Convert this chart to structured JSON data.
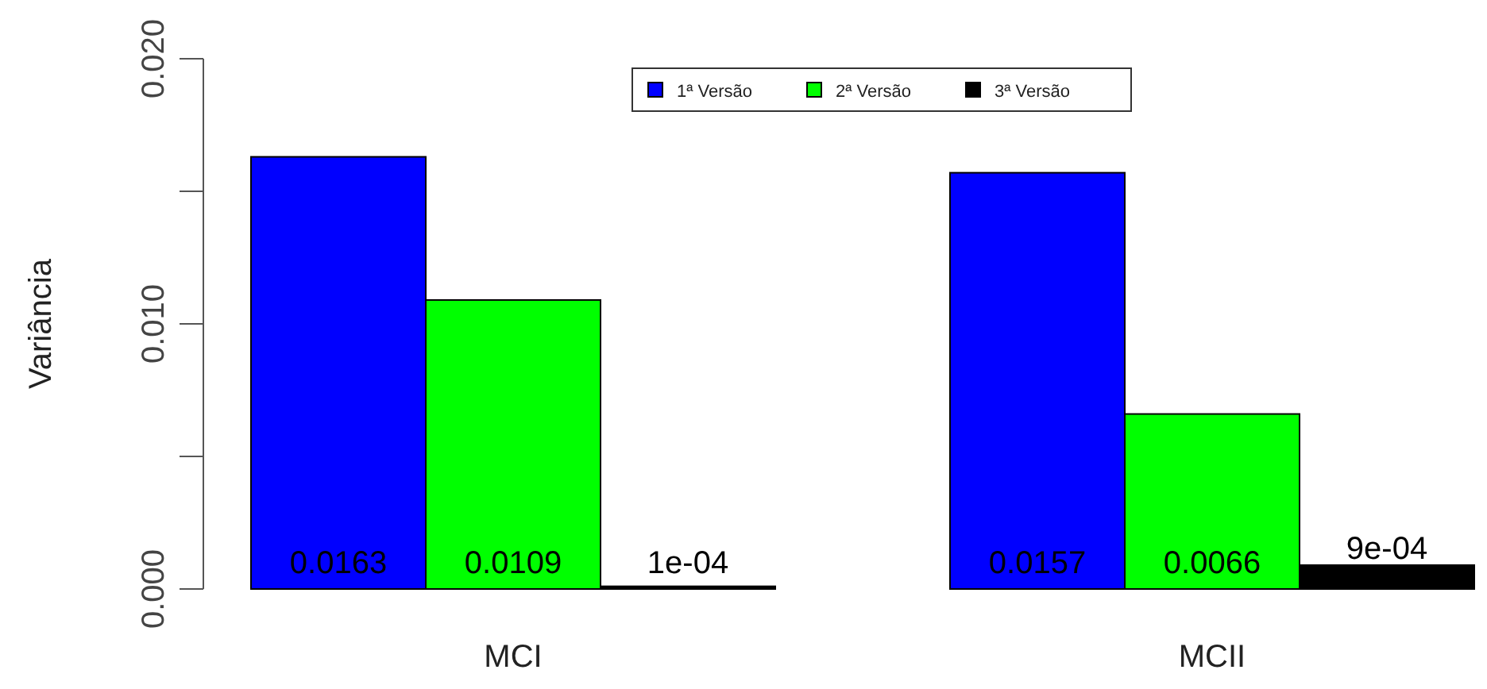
{
  "chart_data": {
    "type": "bar",
    "ylabel": "Variância",
    "categories": [
      "MCI",
      "MCII"
    ],
    "series": [
      {
        "name": "1ª Versão",
        "color": "#0000ff",
        "values": [
          0.0163,
          0.0157
        ],
        "value_labels": [
          "0.0163",
          "0.0157"
        ]
      },
      {
        "name": "2ª Versão",
        "color": "#00ff00",
        "values": [
          0.0109,
          0.0066
        ],
        "value_labels": [
          "0.0109",
          "0.0066"
        ]
      },
      {
        "name": "3ª Versão",
        "color": "#000000",
        "values": [
          0.0001,
          0.0009
        ],
        "value_labels": [
          "1e-04",
          "9e-04"
        ]
      }
    ],
    "ylim": [
      0,
      0.02
    ],
    "yticks": [
      {
        "value": 0,
        "label": "0.000"
      },
      {
        "value": 0.005,
        "label": null
      },
      {
        "value": 0.01,
        "label": "0.010"
      },
      {
        "value": 0.015,
        "label": null
      },
      {
        "value": 0.02,
        "label": "0.020"
      }
    ],
    "grid": false,
    "legend": "top"
  }
}
